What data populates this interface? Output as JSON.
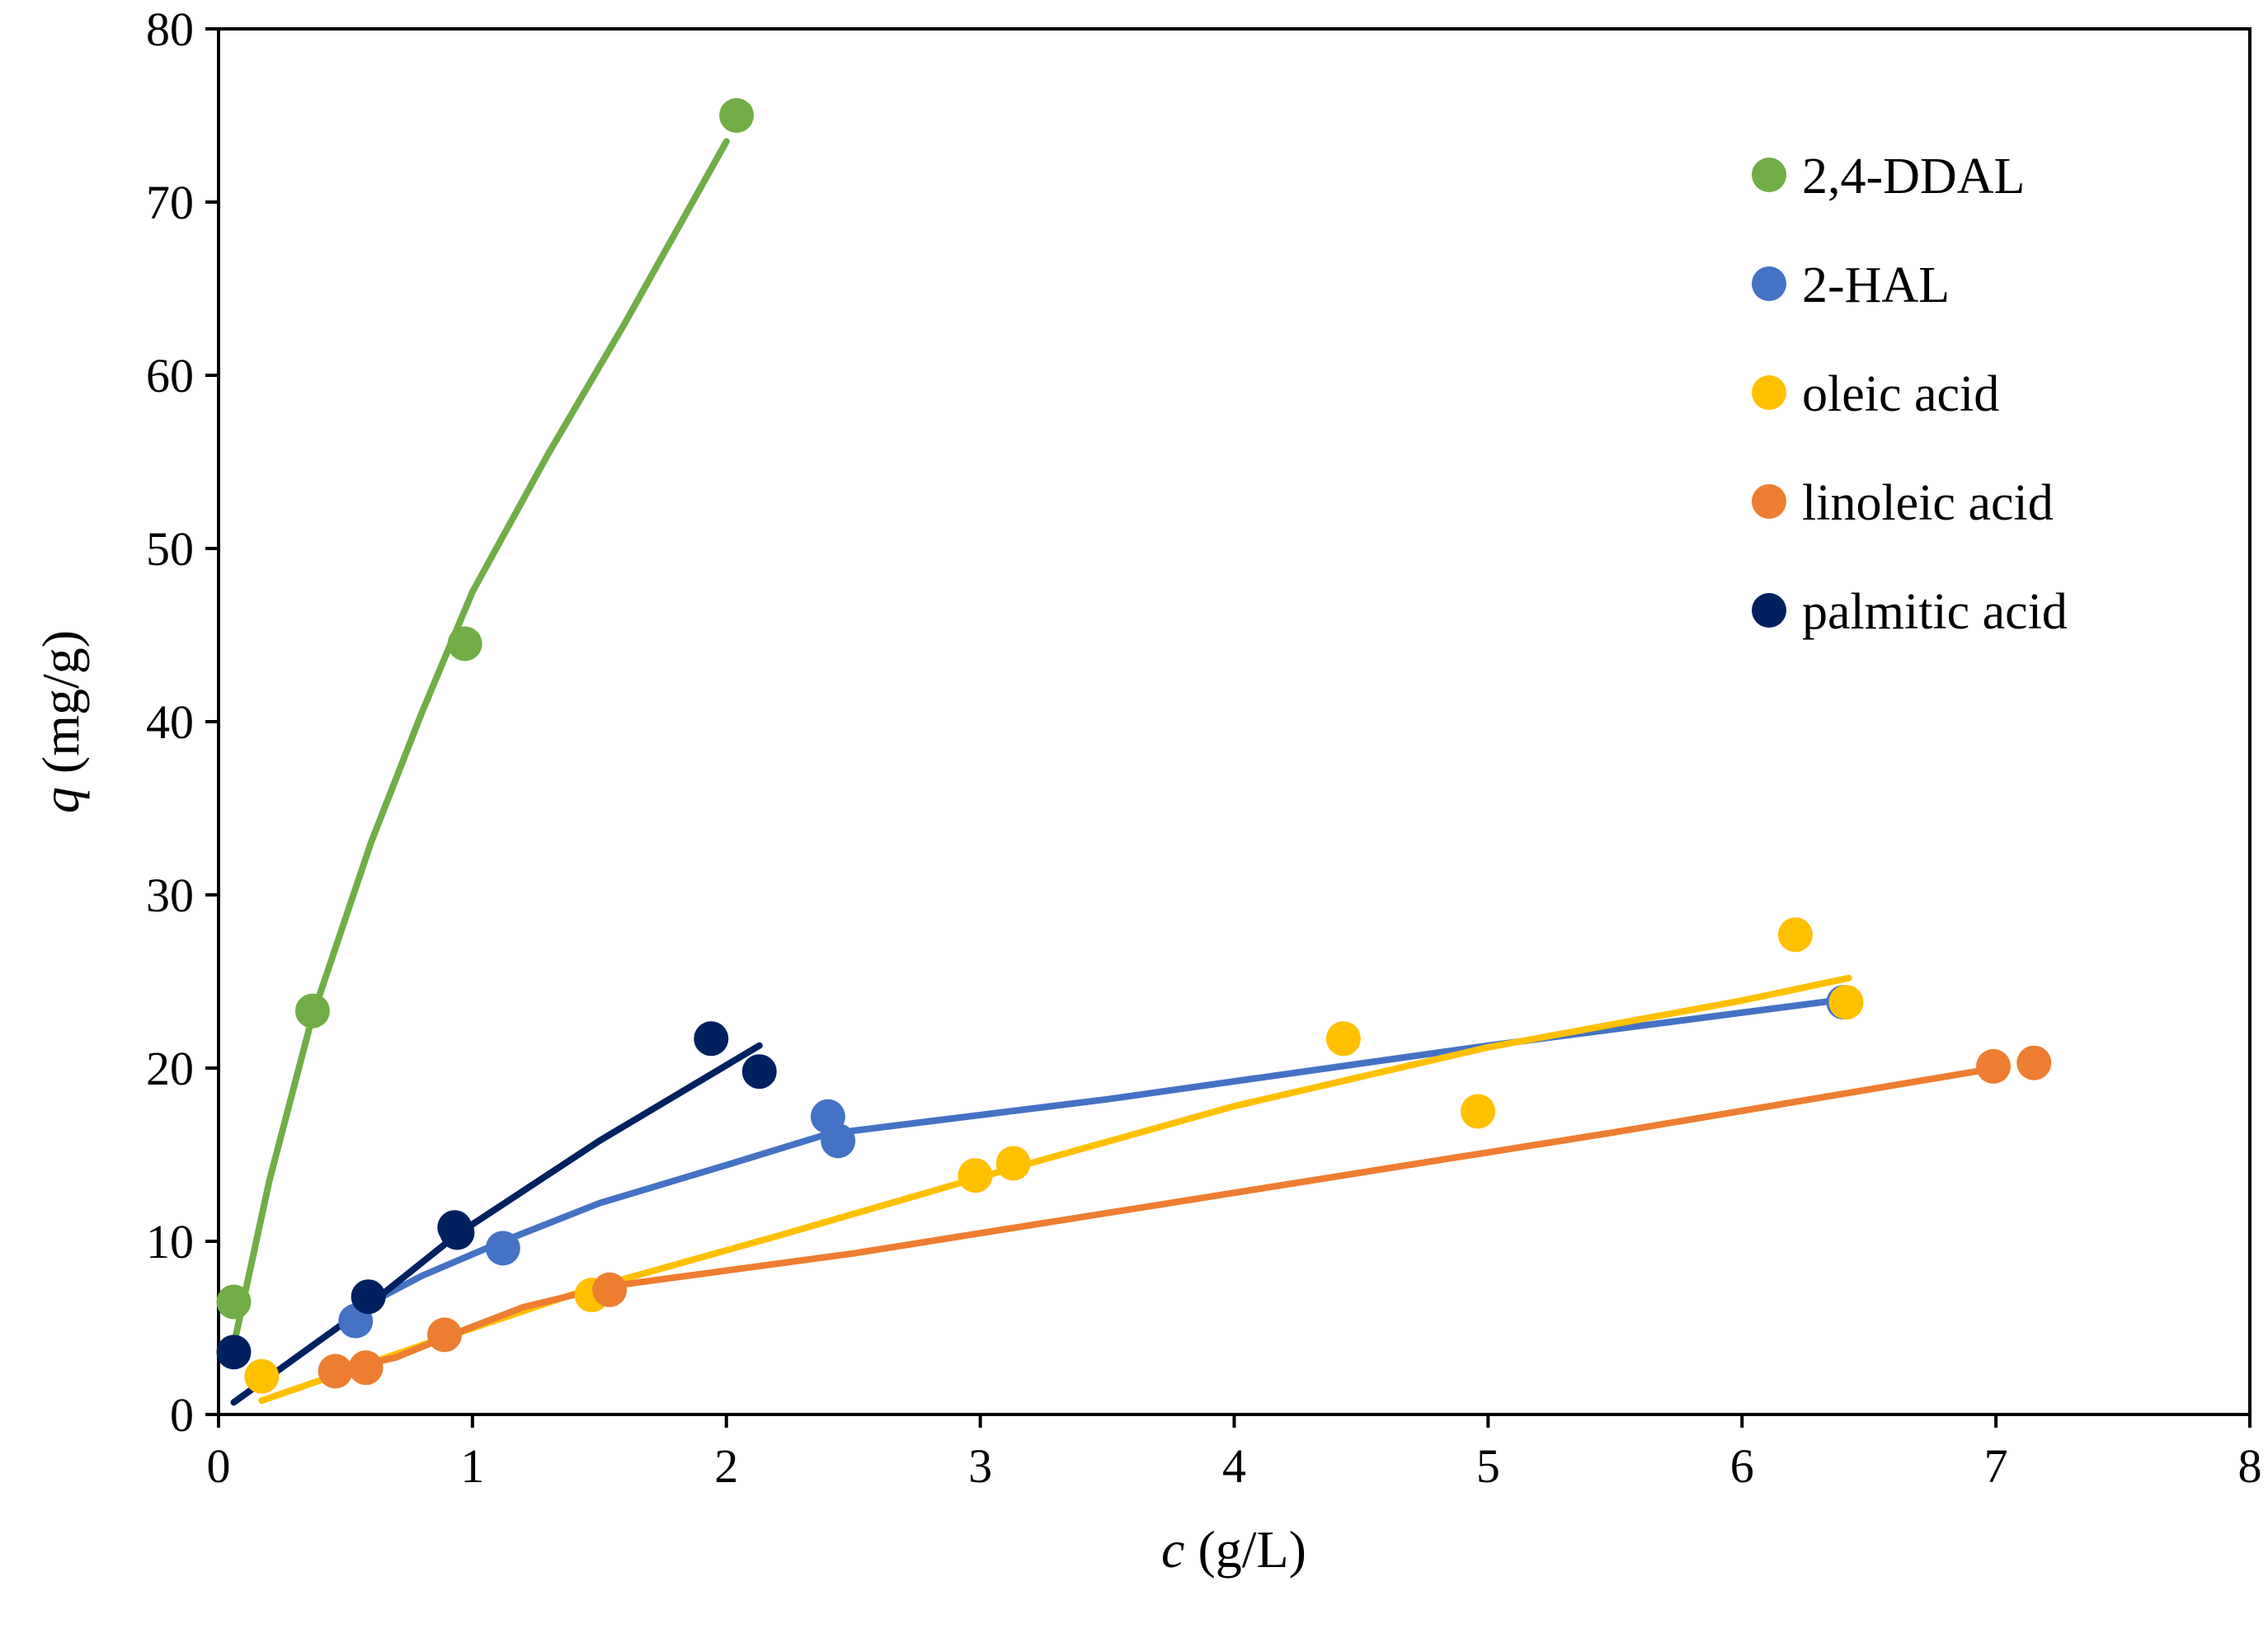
{
  "chart_data": {
    "type": "scatter",
    "xlabel_var": "c",
    "xlabel_unit": " (g/L)",
    "ylabel_var": "q",
    "ylabel_unit": " (mg/g)",
    "xlim": [
      0,
      8
    ],
    "ylim": [
      0,
      80
    ],
    "xticks": [
      "0",
      "1",
      "2",
      "3",
      "4",
      "5",
      "6",
      "7",
      "8"
    ],
    "yticks": [
      "0",
      "10",
      "20",
      "30",
      "40",
      "50",
      "60",
      "70",
      "80"
    ],
    "legend_position": "top-right",
    "series": [
      {
        "name": "2,4-DDAL",
        "color": "#70AD47",
        "points": [
          [
            0.06,
            6.5
          ],
          [
            0.37,
            23.3
          ],
          [
            0.97,
            44.5
          ],
          [
            2.04,
            75.0
          ]
        ],
        "fit": [
          [
            0.06,
            4.0
          ],
          [
            0.2,
            13.5
          ],
          [
            0.37,
            23.0
          ],
          [
            0.6,
            33.0
          ],
          [
            0.8,
            40.5
          ],
          [
            1.0,
            47.5
          ],
          [
            1.3,
            55.5
          ],
          [
            1.6,
            63.0
          ],
          [
            2.0,
            73.5
          ]
        ]
      },
      {
        "name": "2-HAL",
        "color": "#4472C4",
        "points": [
          [
            0.54,
            5.4
          ],
          [
            1.12,
            9.6
          ],
          [
            2.4,
            17.2
          ],
          [
            2.44,
            15.8
          ],
          [
            6.4,
            23.8
          ]
        ],
        "fit": [
          [
            0.54,
            6.0
          ],
          [
            0.8,
            8.0
          ],
          [
            1.12,
            10.0
          ],
          [
            1.5,
            12.2
          ],
          [
            2.0,
            14.4
          ],
          [
            2.4,
            16.2
          ],
          [
            3.5,
            18.2
          ],
          [
            5.0,
            21.3
          ],
          [
            6.42,
            24.0
          ]
        ]
      },
      {
        "name": "oleic acid",
        "color": "#FFC000",
        "points": [
          [
            0.17,
            2.2
          ],
          [
            1.47,
            6.9
          ],
          [
            2.98,
            13.8
          ],
          [
            3.13,
            14.5
          ],
          [
            4.43,
            21.7
          ],
          [
            4.96,
            17.5
          ],
          [
            6.21,
            27.7
          ],
          [
            6.41,
            23.8
          ]
        ],
        "fit": [
          [
            0.17,
            0.8
          ],
          [
            0.8,
            4.0
          ],
          [
            1.47,
            7.3
          ],
          [
            2.2,
            10.3
          ],
          [
            3.0,
            13.7
          ],
          [
            4.0,
            17.8
          ],
          [
            5.0,
            21.2
          ],
          [
            6.0,
            23.9
          ],
          [
            6.42,
            25.2
          ]
        ]
      },
      {
        "name": "linoleic acid",
        "color": "#ED7D31",
        "points": [
          [
            0.46,
            2.5
          ],
          [
            0.58,
            2.7
          ],
          [
            0.89,
            4.6
          ],
          [
            1.54,
            7.2
          ],
          [
            6.99,
            20.1
          ],
          [
            7.15,
            20.3
          ]
        ],
        "fit": [
          [
            0.46,
            2.5
          ],
          [
            0.7,
            3.3
          ],
          [
            0.9,
            4.5
          ],
          [
            1.2,
            6.2
          ],
          [
            1.54,
            7.4
          ],
          [
            2.5,
            9.3
          ],
          [
            4.0,
            12.8
          ],
          [
            5.5,
            16.3
          ],
          [
            7.0,
            20.0
          ]
        ]
      },
      {
        "name": "palmitic acid",
        "color": "#002060",
        "points": [
          [
            0.06,
            3.6
          ],
          [
            0.59,
            6.8
          ],
          [
            0.93,
            10.8
          ],
          [
            0.94,
            10.5
          ],
          [
            1.94,
            21.7
          ],
          [
            2.13,
            19.8
          ]
        ],
        "fit": [
          [
            0.06,
            0.7
          ],
          [
            0.59,
            6.3
          ],
          [
            0.94,
            10.4
          ],
          [
            1.5,
            15.8
          ],
          [
            2.13,
            21.3
          ]
        ]
      }
    ]
  }
}
